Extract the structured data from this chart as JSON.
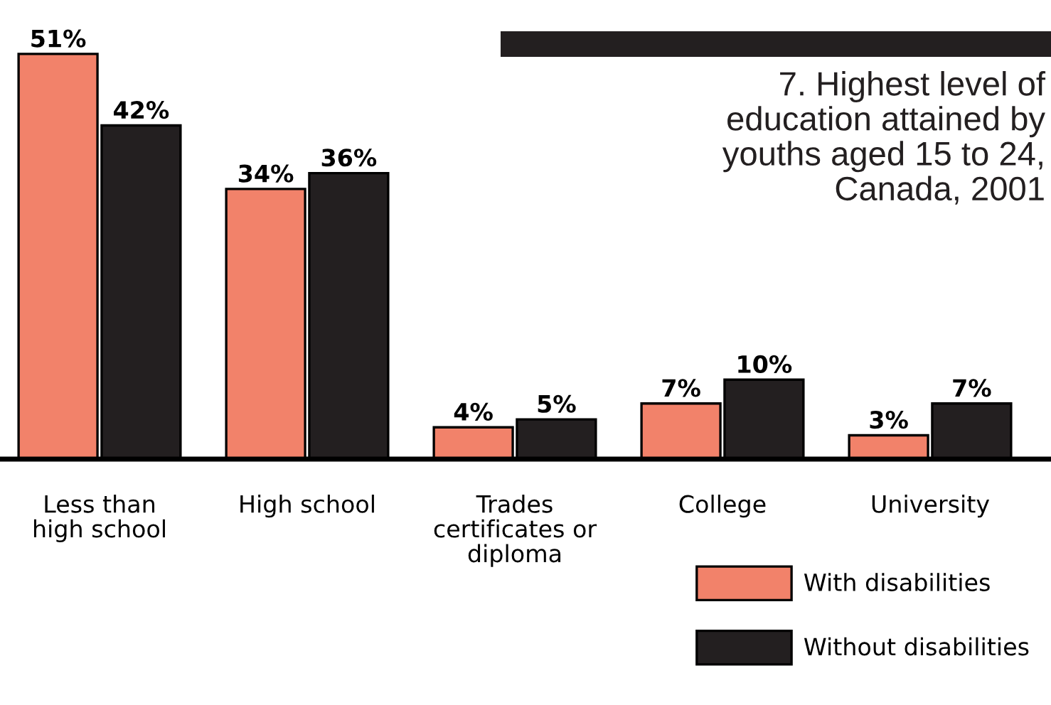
{
  "chart_data": {
    "type": "bar",
    "title": "7. Highest level of\neducation attained by\nyouths aged 15 to 24,\nCanada, 2001",
    "categories": [
      "Less than\nhigh school",
      "High school",
      "Trades\ncertificates or\ndiploma",
      "College",
      "University"
    ],
    "series": [
      {
        "name": "With disabilities",
        "color": "#f2826a",
        "values": [
          51,
          34,
          4,
          7,
          3
        ],
        "value_labels": [
          "51%",
          "34%",
          "4%",
          "7%",
          "3%"
        ]
      },
      {
        "name": "Without disabilities",
        "color": "#231f20",
        "values": [
          42,
          36,
          5,
          10,
          7
        ],
        "value_labels": [
          "42%",
          "36%",
          "5%",
          "10%",
          "7%"
        ]
      }
    ],
    "legend": "bottom right",
    "grid": false
  }
}
